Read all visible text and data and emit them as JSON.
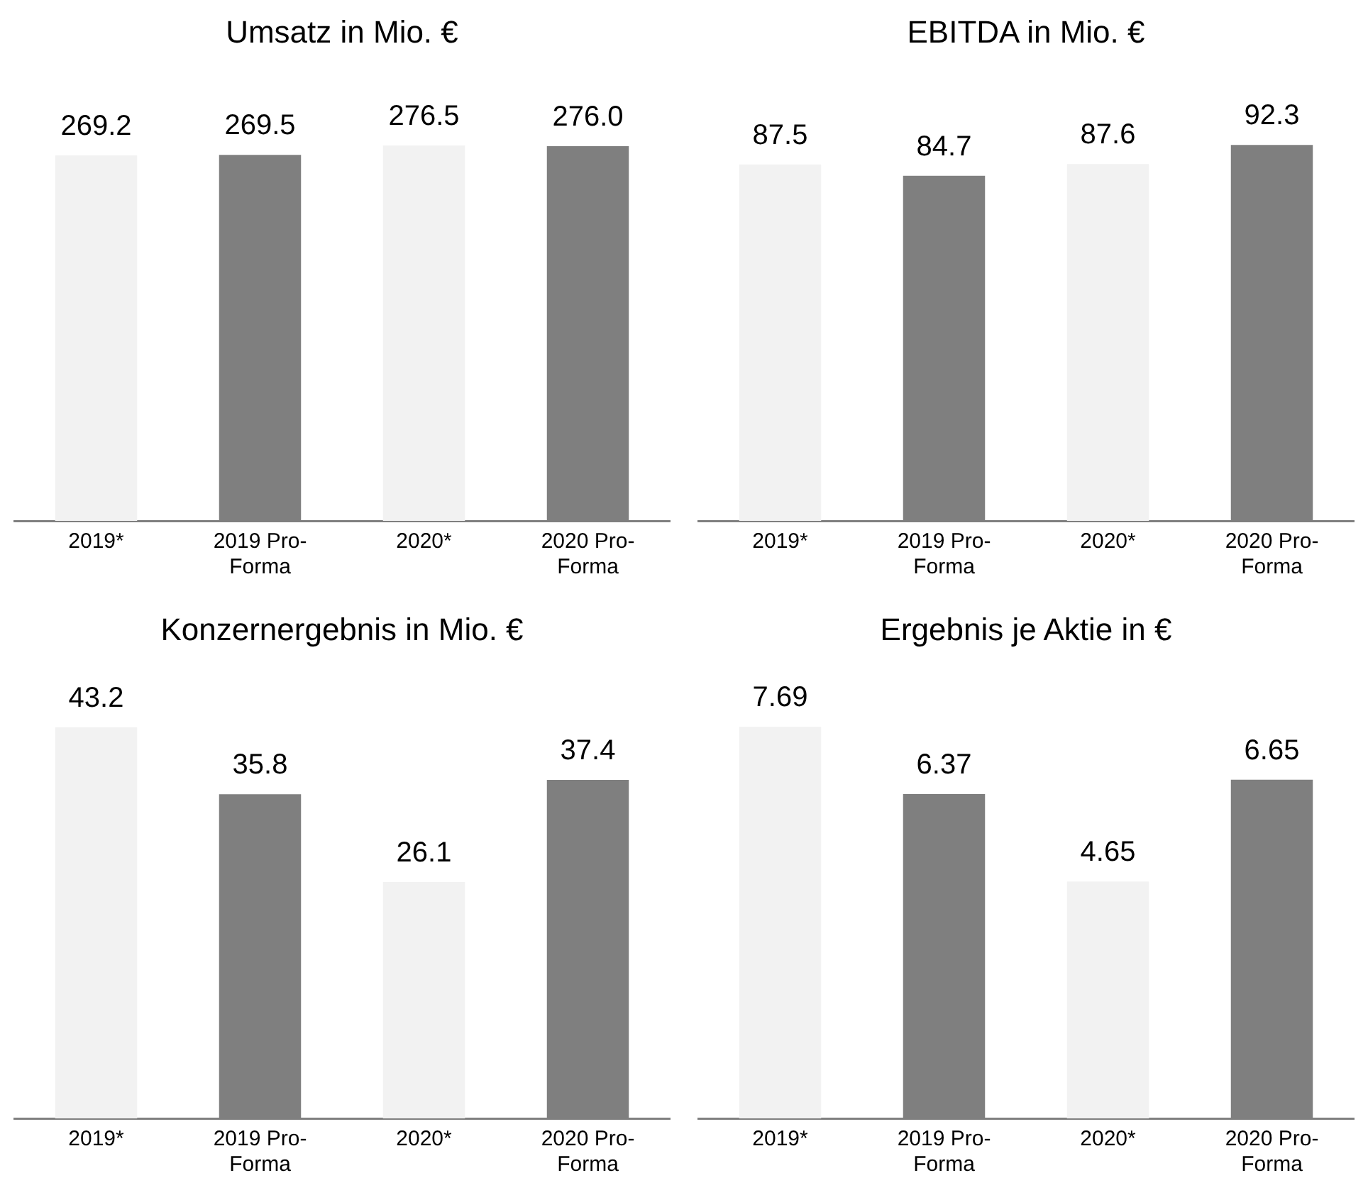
{
  "chart_data": [
    {
      "type": "bar",
      "title": "Umsatz in Mio. €",
      "categories": [
        "2019*",
        "2019 Pro-Forma",
        "2020*",
        "2020 Pro-Forma"
      ],
      "values": [
        269.2,
        269.5,
        276.5,
        276.0
      ],
      "value_labels": [
        "269.2",
        "269.5",
        "276.5",
        "276.0"
      ],
      "colors": [
        "#f2f2f2",
        "#7f7f7f",
        "#f2f2f2",
        "#7f7f7f"
      ],
      "tick_labels": "x",
      "grid": false,
      "legend": false
    },
    {
      "type": "bar",
      "title": "EBITDA in Mio. €",
      "categories": [
        "2019*",
        "2019 Pro-Forma",
        "2020*",
        "2020 Pro-Forma"
      ],
      "values": [
        87.5,
        84.7,
        87.6,
        92.3
      ],
      "value_labels": [
        "87.5",
        "84.7",
        "87.6",
        "92.3"
      ],
      "colors": [
        "#f2f2f2",
        "#7f7f7f",
        "#f2f2f2",
        "#7f7f7f"
      ],
      "tick_labels": "x",
      "grid": false,
      "legend": false
    },
    {
      "type": "bar",
      "title": "Konzernergebnis in Mio. €",
      "categories": [
        "2019*",
        "2019 Pro-Forma",
        "2020*",
        "2020 Pro-Forma"
      ],
      "values": [
        43.2,
        35.8,
        26.1,
        37.4
      ],
      "value_labels": [
        "43.2",
        "35.8",
        "26.1",
        "37.4"
      ],
      "colors": [
        "#f2f2f2",
        "#7f7f7f",
        "#f2f2f2",
        "#7f7f7f"
      ],
      "tick_labels": "x",
      "grid": false,
      "legend": false
    },
    {
      "type": "bar",
      "title": "Ergebnis je Aktie in €",
      "categories": [
        "2019*",
        "2019 Pro-Forma",
        "2020*",
        "2020 Pro-Forma"
      ],
      "values": [
        7.69,
        6.37,
        4.65,
        6.65
      ],
      "value_labels": [
        "7.69",
        "6.37",
        "4.65",
        "6.65"
      ],
      "colors": [
        "#f2f2f2",
        "#7f7f7f",
        "#f2f2f2",
        "#7f7f7f"
      ],
      "tick_labels": "x",
      "grid": false,
      "legend": false
    }
  ]
}
